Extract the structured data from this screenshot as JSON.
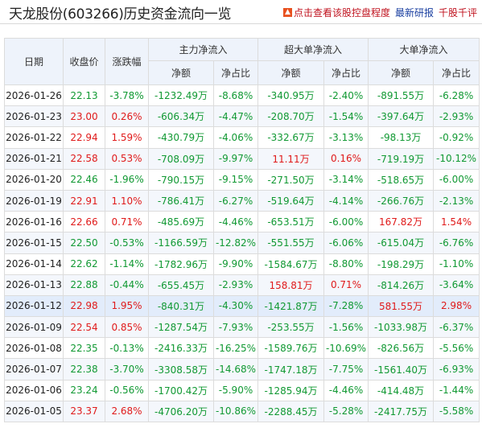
{
  "header": {
    "title": "天龙股份(603266)历史资金流向一览",
    "links": [
      "点击查看该股控盘程度",
      "最新研报",
      "千股千评",
      "九"
    ]
  },
  "columns": {
    "date": "日期",
    "close": "收盘价",
    "change": "涨跌幅",
    "main": "主力净流入",
    "super": "超大单净流入",
    "large": "大单净流入",
    "amount": "净额",
    "ratio": "净占比"
  },
  "rows": [
    {
      "date": "2026-01-26",
      "close": "22.13",
      "change": "-3.78%",
      "main_amt": "-1232.49万",
      "main_pct": "-8.68%",
      "super_amt": "-340.95万",
      "super_pct": "-2.40%",
      "large_amt": "-891.55万",
      "large_pct": "-6.28%"
    },
    {
      "date": "2026-01-23",
      "close": "23.00",
      "change": "0.26%",
      "main_amt": "-606.34万",
      "main_pct": "-4.47%",
      "super_amt": "-208.70万",
      "super_pct": "-1.54%",
      "large_amt": "-397.64万",
      "large_pct": "-2.93%"
    },
    {
      "date": "2026-01-22",
      "close": "22.94",
      "change": "1.59%",
      "main_amt": "-430.79万",
      "main_pct": "-4.06%",
      "super_amt": "-332.67万",
      "super_pct": "-3.13%",
      "large_amt": "-98.13万",
      "large_pct": "-0.92%"
    },
    {
      "date": "2026-01-21",
      "close": "22.58",
      "change": "0.53%",
      "main_amt": "-708.09万",
      "main_pct": "-9.97%",
      "super_amt": "11.11万",
      "super_pct": "0.16%",
      "large_amt": "-719.19万",
      "large_pct": "-10.12%"
    },
    {
      "date": "2026-01-20",
      "close": "22.46",
      "change": "-1.96%",
      "main_amt": "-790.15万",
      "main_pct": "-9.15%",
      "super_amt": "-271.50万",
      "super_pct": "-3.14%",
      "large_amt": "-518.65万",
      "large_pct": "-6.00%"
    },
    {
      "date": "2026-01-19",
      "close": "22.91",
      "change": "1.10%",
      "main_amt": "-786.41万",
      "main_pct": "-6.27%",
      "super_amt": "-519.64万",
      "super_pct": "-4.14%",
      "large_amt": "-266.76万",
      "large_pct": "-2.13%"
    },
    {
      "date": "2026-01-16",
      "close": "22.66",
      "change": "0.71%",
      "main_amt": "-485.69万",
      "main_pct": "-4.46%",
      "super_amt": "-653.51万",
      "super_pct": "-6.00%",
      "large_amt": "167.82万",
      "large_pct": "1.54%"
    },
    {
      "date": "2026-01-15",
      "close": "22.50",
      "change": "-0.53%",
      "main_amt": "-1166.59万",
      "main_pct": "-12.82%",
      "super_amt": "-551.55万",
      "super_pct": "-6.06%",
      "large_amt": "-615.04万",
      "large_pct": "-6.76%"
    },
    {
      "date": "2026-01-14",
      "close": "22.62",
      "change": "-1.14%",
      "main_amt": "-1782.96万",
      "main_pct": "-9.90%",
      "super_amt": "-1584.67万",
      "super_pct": "-8.80%",
      "large_amt": "-198.29万",
      "large_pct": "-1.10%"
    },
    {
      "date": "2026-01-13",
      "close": "22.88",
      "change": "-0.44%",
      "main_amt": "-655.45万",
      "main_pct": "-2.93%",
      "super_amt": "158.81万",
      "super_pct": "0.71%",
      "large_amt": "-814.26万",
      "large_pct": "-3.64%"
    },
    {
      "date": "2026-01-12",
      "close": "22.98",
      "change": "1.95%",
      "main_amt": "-840.31万",
      "main_pct": "-4.30%",
      "super_amt": "-1421.87万",
      "super_pct": "-7.28%",
      "large_amt": "581.55万",
      "large_pct": "2.98%"
    },
    {
      "date": "2026-01-09",
      "close": "22.54",
      "change": "0.85%",
      "main_amt": "-1287.54万",
      "main_pct": "-7.93%",
      "super_amt": "-253.55万",
      "super_pct": "-1.56%",
      "large_amt": "-1033.98万",
      "large_pct": "-6.37%"
    },
    {
      "date": "2026-01-08",
      "close": "22.35",
      "change": "-0.13%",
      "main_amt": "-2416.33万",
      "main_pct": "-16.25%",
      "super_amt": "-1589.76万",
      "super_pct": "-10.69%",
      "large_amt": "-826.56万",
      "large_pct": "-5.56%"
    },
    {
      "date": "2026-01-07",
      "close": "22.38",
      "change": "-3.70%",
      "main_amt": "-3308.58万",
      "main_pct": "-14.68%",
      "super_amt": "-1747.18万",
      "super_pct": "-7.75%",
      "large_amt": "-1561.40万",
      "large_pct": "-6.93%"
    },
    {
      "date": "2026-01-06",
      "close": "23.24",
      "change": "-0.56%",
      "main_amt": "-1700.42万",
      "main_pct": "-5.90%",
      "super_amt": "-1285.94万",
      "super_pct": "-4.46%",
      "large_amt": "-414.48万",
      "large_pct": "-1.44%"
    },
    {
      "date": "2026-01-05",
      "close": "23.37",
      "change": "2.68%",
      "main_amt": "-4706.20万",
      "main_pct": "-10.86%",
      "super_amt": "-2288.45万",
      "super_pct": "-5.28%",
      "large_amt": "-2417.75万",
      "large_pct": "-5.58%"
    }
  ],
  "highlight_row": 10,
  "colors": {
    "up": "#e01a1a",
    "down": "#119933",
    "header_bg": "#eef3fb"
  }
}
